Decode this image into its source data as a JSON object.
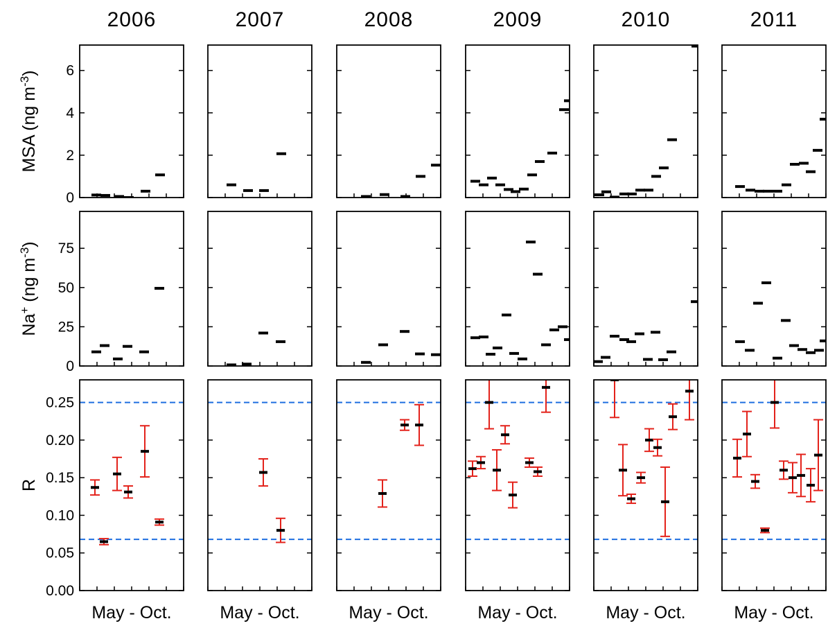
{
  "chart_data": [
    {
      "type": "scatter",
      "title": "2006",
      "ylabel": [
        "MSA (ng m",
        "-3",
        ")"
      ],
      "x": [
        5.96,
        6.48,
        7.28,
        7.84,
        8.8,
        9.64
      ],
      "values": [
        0.12,
        0.1,
        0.05,
        0.0,
        0.3,
        1.07
      ],
      "color": "#000000",
      "xlim": [
        5,
        11
      ],
      "xticks": [
        5,
        6,
        7,
        8,
        9,
        10,
        11
      ],
      "ylim": [
        0,
        7.2
      ],
      "yticks": [
        0,
        2,
        4,
        6
      ]
    },
    {
      "type": "scatter",
      "title": "2007",
      "x": [
        6.36,
        7.32,
        8.24,
        9.24
      ],
      "values": [
        0.6,
        0.33,
        0.33,
        2.07
      ],
      "color": "#000000",
      "xlim": [
        5,
        11
      ],
      "xticks": [
        5,
        6,
        7,
        8,
        9,
        10,
        11
      ],
      "ylim": [
        0,
        7.2
      ],
      "yticks": [
        0,
        2,
        4,
        6
      ],
      "ytick_labels": false
    },
    {
      "type": "scatter",
      "title": "2008",
      "x": [
        6.68,
        7.76,
        8.96,
        9.84,
        10.72
      ],
      "values": [
        0.05,
        0.14,
        0.05,
        1.0,
        1.53
      ],
      "color": "#000000",
      "xlim": [
        5,
        11
      ],
      "xticks": [
        5,
        6,
        7,
        8,
        9,
        10,
        11
      ],
      "ylim": [
        0,
        7.2
      ],
      "yticks": [
        0,
        2,
        4,
        6
      ],
      "ytick_labels": false
    },
    {
      "type": "scatter",
      "title": "2009",
      "x": [
        5.56,
        6.04,
        6.52,
        7.0,
        7.48,
        7.88,
        8.36,
        8.84,
        9.28,
        10.0,
        10.68,
        10.96
      ],
      "values": [
        0.77,
        0.6,
        0.92,
        0.6,
        0.38,
        0.28,
        0.4,
        1.07,
        1.7,
        2.1,
        4.15,
        4.57
      ],
      "color": "#000000",
      "xlim": [
        5,
        11
      ],
      "xticks": [
        5,
        6,
        7,
        8,
        9,
        10,
        11
      ],
      "ylim": [
        0,
        7.2
      ],
      "yticks": [
        0,
        2,
        4,
        6
      ],
      "ytick_labels": false
    },
    {
      "type": "scatter",
      "title": "2010",
      "x": [
        5.32,
        5.72,
        6.2,
        6.76,
        7.2,
        7.68,
        8.16,
        8.6,
        9.04,
        9.52,
        10.92
      ],
      "values": [
        0.13,
        0.27,
        0.02,
        0.17,
        0.17,
        0.35,
        0.35,
        1.0,
        1.4,
        2.73,
        7.15
      ],
      "color": "#000000",
      "xlim": [
        5,
        11
      ],
      "xticks": [
        5,
        6,
        7,
        8,
        9,
        10,
        11
      ],
      "ylim": [
        0,
        7.2
      ],
      "yticks": [
        0,
        2,
        4,
        6
      ],
      "ytick_labels": false
    },
    {
      "type": "scatter",
      "title": "2011",
      "x": [
        6.04,
        6.64,
        7.16,
        7.64,
        8.2,
        8.72,
        9.2,
        9.72,
        10.12,
        10.52,
        10.92
      ],
      "values": [
        0.52,
        0.35,
        0.3,
        0.3,
        0.3,
        0.6,
        1.57,
        1.62,
        1.22,
        2.23,
        3.7
      ],
      "color": "#000000",
      "xlim": [
        5,
        11
      ],
      "xticks": [
        5,
        6,
        7,
        8,
        9,
        10,
        11
      ],
      "ylim": [
        0,
        7.2
      ],
      "yticks": [
        0,
        2,
        4,
        6
      ],
      "ytick_labels": false
    },
    {
      "type": "scatter",
      "ylabel": [
        "Na",
        "+",
        " (ng m",
        "-3",
        ")"
      ],
      "x": [
        5.96,
        6.44,
        7.2,
        7.76,
        8.72,
        9.6
      ],
      "values": [
        9,
        13,
        4.5,
        12.5,
        9,
        49.5
      ],
      "color": "#000000",
      "xlim": [
        5,
        11
      ],
      "xticks": [
        5,
        6,
        7,
        8,
        9,
        10,
        11
      ],
      "ylim": [
        0,
        98.5
      ],
      "yticks": [
        0,
        25,
        50,
        75
      ]
    },
    {
      "type": "scatter",
      "x": [
        6.36,
        7.24,
        8.2,
        9.2
      ],
      "values": [
        0.7,
        1.2,
        21,
        15.5
      ],
      "color": "#000000",
      "xlim": [
        5,
        11
      ],
      "xticks": [
        5,
        6,
        7,
        8,
        9,
        10,
        11
      ],
      "ylim": [
        0,
        98.5
      ],
      "yticks": [
        0,
        25,
        50,
        75
      ],
      "ytick_labels": false
    },
    {
      "type": "scatter",
      "x": [
        6.68,
        7.68,
        8.92,
        9.8,
        10.72
      ],
      "values": [
        2.3,
        13.5,
        22,
        7.7,
        7.2
      ],
      "color": "#000000",
      "xlim": [
        5,
        11
      ],
      "xticks": [
        5,
        6,
        7,
        8,
        9,
        10,
        11
      ],
      "ylim": [
        0,
        98.5
      ],
      "yticks": [
        0,
        25,
        50,
        75
      ],
      "ytick_labels": false
    },
    {
      "type": "scatter",
      "x": [
        5.56,
        6.04,
        6.44,
        6.84,
        7.36,
        7.8,
        8.28,
        8.76,
        9.16,
        9.64,
        10.12,
        10.6,
        10.96
      ],
      "values": [
        18,
        18.5,
        7.5,
        11.5,
        32.5,
        8,
        4.5,
        79,
        58.5,
        13.5,
        23,
        25,
        16.8
      ],
      "color": "#000000",
      "xlim": [
        5,
        11
      ],
      "xticks": [
        5,
        6,
        7,
        8,
        9,
        10,
        11
      ],
      "ylim": [
        0,
        98.5
      ],
      "yticks": [
        0,
        25,
        50,
        75
      ],
      "ytick_labels": false
    },
    {
      "type": "scatter",
      "x": [
        5.24,
        5.68,
        6.2,
        6.76,
        7.16,
        7.64,
        8.12,
        8.56,
        9.0,
        9.48,
        10.88
      ],
      "values": [
        2.8,
        5.5,
        19,
        16.8,
        15.5,
        20.5,
        4.2,
        21.5,
        4,
        9,
        41
      ],
      "color": "#000000",
      "xlim": [
        5,
        11
      ],
      "xticks": [
        5,
        6,
        7,
        8,
        9,
        10,
        11
      ],
      "ylim": [
        0,
        98.5
      ],
      "yticks": [
        0,
        25,
        50,
        75
      ],
      "ytick_labels": false
    },
    {
      "type": "scatter",
      "x": [
        6.04,
        6.6,
        7.08,
        7.56,
        8.2,
        8.68,
        9.16,
        9.64,
        10.12,
        10.6,
        10.92
      ],
      "values": [
        15.5,
        10,
        40,
        53,
        5,
        29,
        13,
        10.5,
        8.5,
        10,
        16
      ],
      "color": "#000000",
      "xlim": [
        5,
        11
      ],
      "xticks": [
        5,
        6,
        7,
        8,
        9,
        10,
        11
      ],
      "ylim": [
        0,
        98.5
      ],
      "yticks": [
        0,
        25,
        50,
        75
      ],
      "ytick_labels": false
    },
    {
      "type": "errorbar",
      "ylabel": [
        "R"
      ],
      "xlabel": "May - Oct.",
      "x": [
        5.88,
        6.4,
        7.16,
        7.8,
        8.76,
        9.6
      ],
      "values": [
        0.137,
        0.065,
        0.155,
        0.131,
        0.185,
        0.091
      ],
      "errors": [
        0.01,
        0.004,
        0.022,
        0.008,
        0.034,
        0.004
      ],
      "color": "#000000",
      "error_color": "#e3221b",
      "hlines": [
        0.068,
        0.25
      ],
      "hline_color": "#1e6fe0",
      "xlim": [
        5,
        11
      ],
      "xticks": [
        5,
        6,
        7,
        8,
        9,
        10,
        11
      ],
      "ylim": [
        0,
        0.28
      ],
      "yticks": [
        {
          "value": 0,
          "label": "0.00"
        },
        0.05,
        {
          "value": 0.1,
          "label": "0.10"
        },
        0.15,
        {
          "value": 0.2,
          "label": "0.20"
        },
        0.25
      ]
    },
    {
      "type": "errorbar",
      "xlabel": "May - Oct.",
      "x": [
        8.2,
        9.2
      ],
      "values": [
        0.157,
        0.08
      ],
      "errors": [
        0.018,
        0.016
      ],
      "color": "#000000",
      "error_color": "#e3221b",
      "hlines": [
        0.068,
        0.25
      ],
      "hline_color": "#1e6fe0",
      "xlim": [
        5,
        11
      ],
      "xticks": [
        5,
        6,
        7,
        8,
        9,
        10,
        11
      ],
      "ylim": [
        0,
        0.28
      ],
      "yticks": [
        0,
        0.05,
        0.1,
        0.15,
        0.2,
        0.25
      ],
      "ytick_labels": false
    },
    {
      "type": "errorbar",
      "xlabel": "May - Oct.",
      "x": [
        7.64,
        8.92,
        9.76
      ],
      "values": [
        0.129,
        0.22,
        0.22
      ],
      "errors": [
        0.018,
        0.007,
        0.027
      ],
      "color": "#000000",
      "error_color": "#e3221b",
      "hlines": [
        0.068,
        0.25
      ],
      "hline_color": "#1e6fe0",
      "xlim": [
        5,
        11
      ],
      "xticks": [
        5,
        6,
        7,
        8,
        9,
        10,
        11
      ],
      "ylim": [
        0,
        0.28
      ],
      "yticks": [
        0,
        0.05,
        0.1,
        0.15,
        0.2,
        0.25
      ],
      "ytick_labels": false
    },
    {
      "type": "errorbar",
      "xlabel": "May - Oct.",
      "x": [
        5.4,
        5.88,
        6.36,
        6.8,
        7.28,
        7.72,
        8.68,
        9.16,
        9.64
      ],
      "values": [
        0.162,
        0.17,
        0.25,
        0.16,
        0.207,
        0.127,
        0.17,
        0.158,
        0.27
      ],
      "errors": [
        0.01,
        0.008,
        0.035,
        0.027,
        0.012,
        0.017,
        0.006,
        0.006,
        0.033
      ],
      "color": "#000000",
      "error_color": "#e3221b",
      "hlines": [
        0.068,
        0.25
      ],
      "hline_color": "#1e6fe0",
      "xlim": [
        5,
        11
      ],
      "xticks": [
        5,
        6,
        7,
        8,
        9,
        10,
        11
      ],
      "ylim": [
        0,
        0.28
      ],
      "yticks": [
        0,
        0.05,
        0.1,
        0.15,
        0.2,
        0.25
      ],
      "ytick_labels": false
    },
    {
      "type": "errorbar",
      "xlabel": "May - Oct.",
      "x": [
        6.2,
        6.68,
        7.16,
        7.72,
        8.2,
        8.68,
        9.12,
        9.56,
        10.52
      ],
      "values": [
        0.28,
        0.16,
        0.122,
        0.15,
        0.2,
        0.19,
        0.118,
        0.231,
        0.265
      ],
      "errors": [
        0.05,
        0.034,
        0.006,
        0.007,
        0.015,
        0.011,
        0.046,
        0.017,
        0.038
      ],
      "color": "#000000",
      "error_color": "#e3221b",
      "hlines": [
        0.068,
        0.25
      ],
      "hline_color": "#1e6fe0",
      "xlim": [
        5,
        11
      ],
      "xticks": [
        5,
        6,
        7,
        8,
        9,
        10,
        11
      ],
      "ylim": [
        0,
        0.28
      ],
      "yticks": [
        0,
        0.05,
        0.1,
        0.15,
        0.2,
        0.25
      ],
      "ytick_labels": false
    },
    {
      "type": "errorbar",
      "xlabel": "May - Oct.",
      "x": [
        5.88,
        6.44,
        6.92,
        7.48,
        8.04,
        8.56,
        9.08,
        9.56,
        10.12,
        10.56
      ],
      "values": [
        0.176,
        0.208,
        0.145,
        0.08,
        0.25,
        0.16,
        0.15,
        0.153,
        0.14,
        0.18
      ],
      "errors": [
        0.025,
        0.03,
        0.009,
        0.003,
        0.034,
        0.012,
        0.02,
        0.028,
        0.022,
        0.047
      ],
      "color": "#000000",
      "error_color": "#e3221b",
      "hlines": [
        0.068,
        0.25
      ],
      "hline_color": "#1e6fe0",
      "xlim": [
        5,
        11
      ],
      "xticks": [
        5,
        6,
        7,
        8,
        9,
        10,
        11
      ],
      "ylim": [
        0,
        0.28
      ],
      "yticks": [
        0,
        0.05,
        0.1,
        0.15,
        0.2,
        0.25
      ],
      "ytick_labels": false
    }
  ]
}
